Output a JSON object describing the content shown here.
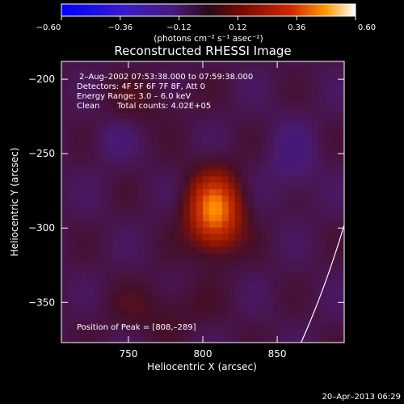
{
  "chart_data": {
    "type": "heatmap",
    "title": "Reconstructed RHESSI Image",
    "xlabel": "Heliocentric X (arcsec)",
    "ylabel": "Heliocentric Y (arcsec)",
    "xlim": [
      705,
      895
    ],
    "ylim": [
      -377,
      -188
    ],
    "x_ticks": [
      750,
      800,
      850
    ],
    "x_tick_labels": [
      "750",
      "800",
      "850"
    ],
    "y_ticks": [
      -200,
      -250,
      -300,
      -350
    ],
    "y_tick_labels": [
      "−200",
      "−250",
      "−300",
      "−350"
    ],
    "colorbar": {
      "range": [
        -0.6,
        0.6
      ],
      "ticks": [
        -0.6,
        -0.36,
        -0.12,
        0.12,
        0.36,
        0.6
      ],
      "tick_labels": [
        "−0.60",
        "−0.36",
        "−0.12",
        "0.12",
        "0.36",
        "0.60"
      ],
      "unit_label": "(photons cm⁻² s⁻¹ asec⁻²)"
    },
    "annotations": {
      "time": "2–Aug–2002 07:53:38.000 to 07:59:38.000",
      "detectors": "Detectors: 4F 5F 6F 7F 8F, Att 0",
      "energy": "Energy Range: 3.0 – 6.0 keV",
      "algorithm": "Clean",
      "counts": "Total counts: 4.02E+05",
      "peak": "Position of Peak = [808,–289]"
    },
    "peak_position": [
      808,
      -289
    ],
    "peak_value": 0.6,
    "limb_arc": {
      "x": [
        866,
        895
      ],
      "y": [
        -377,
        -298
      ]
    },
    "footer_timestamp": "20–Apr–2013 06:29",
    "colors": {
      "background": "#000000",
      "text": "#ffffff",
      "colormap": [
        "#0000ff",
        "#4a1a9a",
        "#3a0d3a",
        "#8a1200",
        "#cc3a00",
        "#ff8800",
        "#ffffaa"
      ]
    }
  }
}
